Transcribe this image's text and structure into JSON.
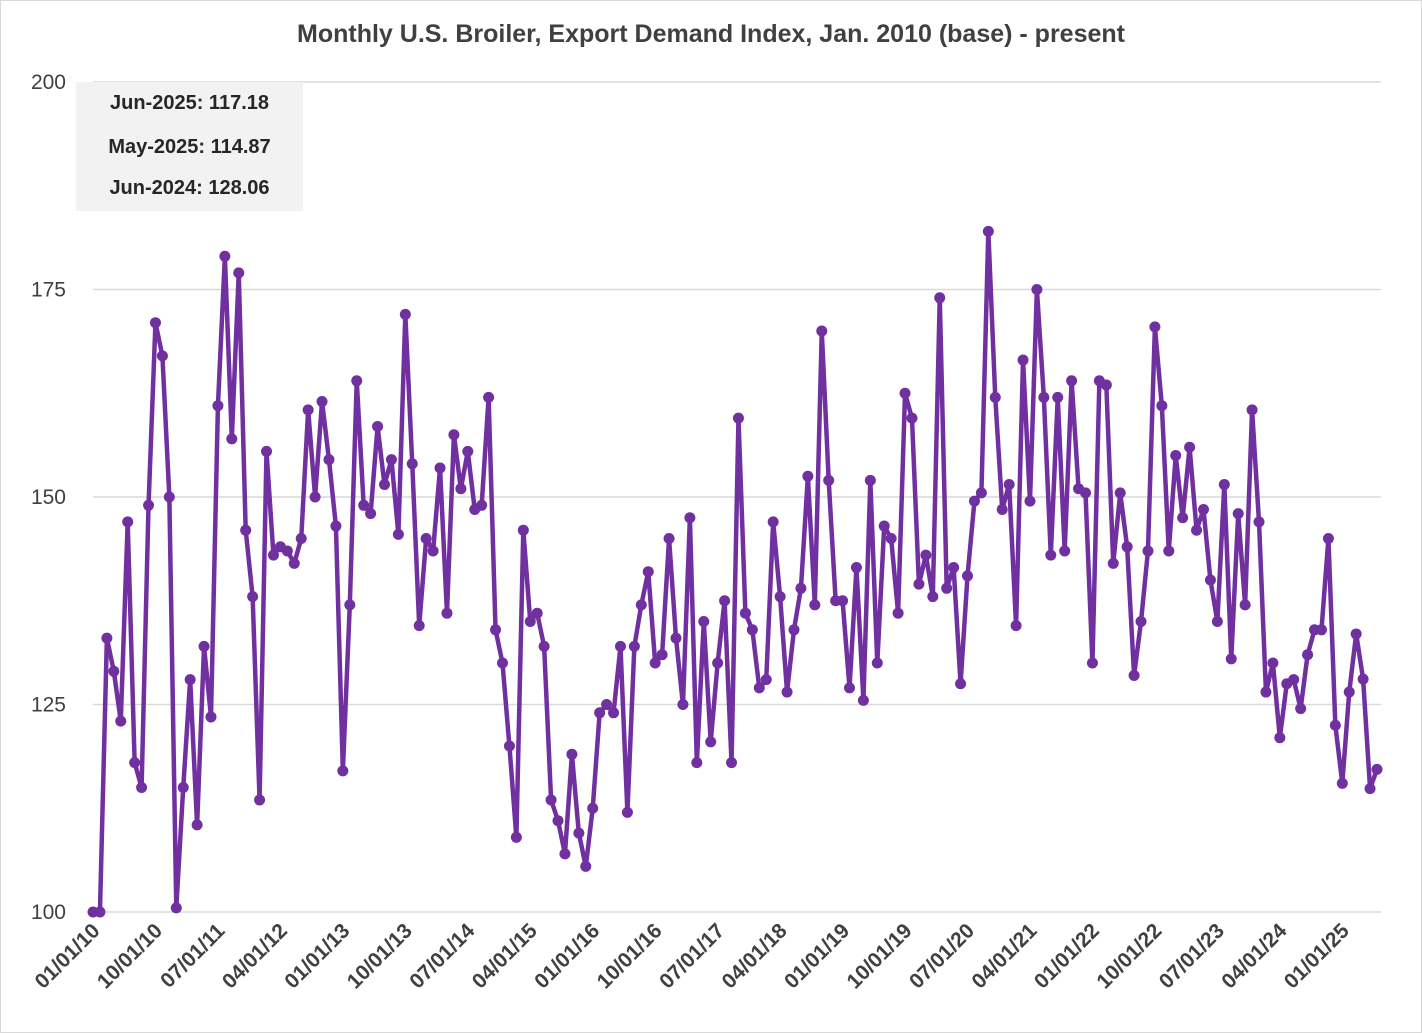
{
  "chart_data": {
    "type": "line",
    "title": "Monthly U.S. Broiler, Export Demand Index, Jan. 2010 (base) - present",
    "xlabel": "",
    "ylabel": "",
    "ylim": [
      100,
      200
    ],
    "yticks": [
      100,
      125,
      150,
      175,
      200
    ],
    "grid": true,
    "x_start": "2010-01",
    "x_end": "2025-06",
    "xtick_labels": [
      "01/01/10",
      "10/01/10",
      "07/01/11",
      "04/01/12",
      "01/01/13",
      "10/01/13",
      "07/01/14",
      "04/01/15",
      "01/01/16",
      "10/01/16",
      "07/01/17",
      "04/01/18",
      "01/01/19",
      "10/01/19",
      "07/01/20",
      "04/01/21",
      "01/01/22",
      "10/01/22",
      "07/01/23",
      "04/01/24",
      "01/01/25"
    ],
    "series_color": "#7030a0",
    "values": [
      100,
      100,
      133,
      129,
      123,
      147,
      118,
      115,
      149,
      171,
      167,
      150,
      100.5,
      115,
      128,
      110.5,
      132,
      123.5,
      161,
      179,
      157,
      177,
      146,
      138,
      113.5,
      155.5,
      143,
      144,
      143.5,
      142,
      145,
      160.5,
      150,
      161.5,
      154.5,
      146.5,
      117,
      137,
      164,
      149,
      148,
      158.5,
      151.5,
      154.5,
      145.5,
      172,
      154,
      134.5,
      145,
      143.5,
      153.5,
      136,
      157.5,
      151,
      155.5,
      148.5,
      149,
      162,
      134,
      130,
      120,
      109,
      146,
      135,
      136,
      132,
      113.5,
      111,
      107,
      119,
      109.5,
      105.5,
      112.5,
      124,
      125,
      124,
      132,
      112,
      132,
      137,
      141,
      130,
      131,
      145,
      133,
      125,
      147.5,
      118,
      135,
      120.5,
      130,
      137.5,
      118,
      159.5,
      136,
      134,
      127,
      128,
      147,
      138,
      126.5,
      134,
      139,
      152.5,
      137,
      170,
      152,
      137.5,
      137.5,
      127,
      141.5,
      125.5,
      152,
      130,
      146.5,
      145,
      136,
      162.5,
      159.5,
      139.5,
      143,
      138,
      174,
      139,
      141.5,
      127.5,
      140.5,
      149.5,
      150.5,
      182,
      162,
      148.5,
      151.5,
      134.5,
      166.5,
      149.5,
      175,
      162,
      143,
      162,
      143.5,
      164,
      151,
      150.5,
      130,
      164,
      163.5,
      142,
      150.5,
      144,
      128.5,
      135,
      143.5,
      170.5,
      161,
      143.5,
      155,
      147.5,
      156,
      146,
      148.5,
      140,
      135,
      151.5,
      130.5,
      148,
      137,
      160.5,
      147,
      126.5,
      130,
      121,
      127.5,
      128,
      124.5,
      131,
      134,
      134,
      145,
      122.5,
      115.5,
      126.5,
      133.5,
      128.06,
      114.87,
      117.18
    ]
  },
  "annotations": [
    {
      "text": "Jun-2025: 117.18"
    },
    {
      "text": "May-2025: 114.87"
    },
    {
      "text": "Jun-2024: 128.06"
    }
  ]
}
